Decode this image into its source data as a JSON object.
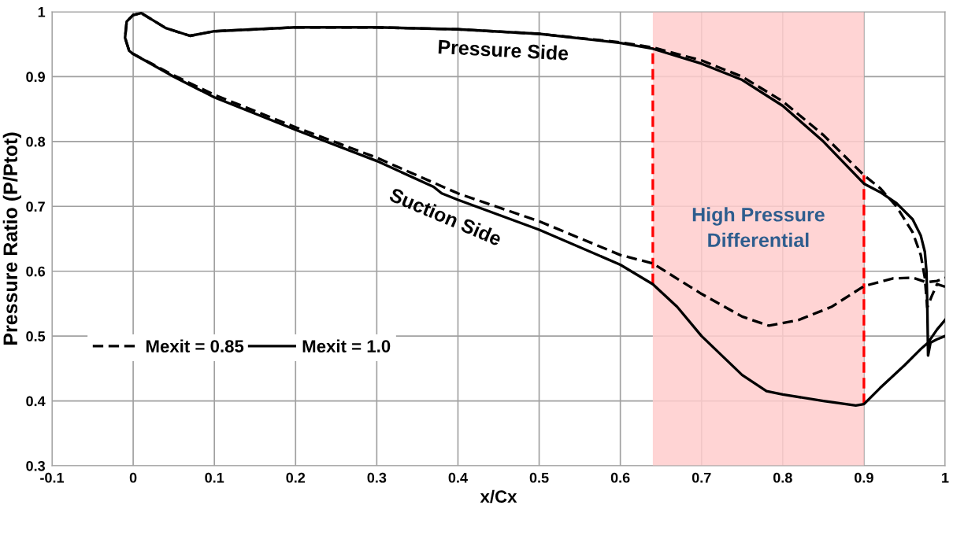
{
  "chart_data": {
    "type": "line",
    "xlabel": "x/Cx",
    "ylabel": "Pressure Ratio (P/Ptot)",
    "xlim": [
      -0.1,
      1
    ],
    "xticks": [
      -0.1,
      0,
      0.1,
      0.2,
      0.3,
      0.4,
      0.5,
      0.6,
      0.7,
      0.8,
      0.9,
      1
    ],
    "ylim": [
      0.3,
      1
    ],
    "yticks": [
      0.3,
      0.4,
      0.5,
      0.6,
      0.7,
      0.8,
      0.9,
      1
    ],
    "grid": true,
    "legend": "left",
    "series": [
      {
        "name": "Mexit = 0.85",
        "color": "#000000",
        "line_style": "dashed",
        "x": [
          1.0,
          0.99,
          0.983,
          0.978,
          0.975,
          0.97,
          0.96,
          0.94,
          0.92,
          0.9,
          0.85,
          0.8,
          0.75,
          0.7,
          0.64,
          0.6,
          0.5,
          0.4,
          0.3,
          0.2,
          0.1,
          0.07,
          0.04,
          0.01,
          0.0,
          -0.008,
          -0.01,
          -0.005,
          0.0,
          0.05,
          0.1,
          0.2,
          0.3,
          0.4,
          0.5,
          0.6,
          0.64,
          0.7,
          0.75,
          0.783,
          0.82,
          0.86,
          0.9,
          0.936,
          0.96,
          0.977,
          0.99,
          1.0
        ],
        "values": [
          0.576,
          0.58,
          0.56,
          0.544,
          0.59,
          0.625,
          0.66,
          0.7,
          0.728,
          0.748,
          0.81,
          0.862,
          0.9,
          0.925,
          0.945,
          0.953,
          0.966,
          0.973,
          0.976,
          0.976,
          0.97,
          0.963,
          0.975,
          0.998,
          0.995,
          0.985,
          0.96,
          0.94,
          0.935,
          0.902,
          0.872,
          0.822,
          0.775,
          0.72,
          0.677,
          0.625,
          0.612,
          0.565,
          0.53,
          0.516,
          0.525,
          0.545,
          0.577,
          0.589,
          0.59,
          0.583,
          0.585,
          0.59
        ]
      },
      {
        "name": "Mexit = 1.0",
        "color": "#000000",
        "line_style": "solid",
        "x": [
          1.0,
          0.99,
          0.982,
          0.979,
          0.978,
          0.977,
          0.975,
          0.97,
          0.96,
          0.94,
          0.92,
          0.9,
          0.85,
          0.8,
          0.75,
          0.7,
          0.64,
          0.6,
          0.5,
          0.4,
          0.3,
          0.2,
          0.1,
          0.07,
          0.04,
          0.01,
          0.0,
          -0.008,
          -0.01,
          -0.005,
          0.0,
          0.05,
          0.1,
          0.2,
          0.3,
          0.37,
          0.38,
          0.4,
          0.5,
          0.6,
          0.64,
          0.67,
          0.7,
          0.75,
          0.78,
          0.8,
          0.85,
          0.89,
          0.9,
          0.92,
          0.95,
          0.97,
          0.979,
          0.99,
          1.0
        ],
        "values": [
          0.5,
          0.495,
          0.49,
          0.47,
          0.55,
          0.6,
          0.63,
          0.655,
          0.68,
          0.705,
          0.722,
          0.735,
          0.8,
          0.855,
          0.895,
          0.92,
          0.943,
          0.952,
          0.966,
          0.973,
          0.976,
          0.976,
          0.97,
          0.963,
          0.975,
          0.998,
          0.995,
          0.985,
          0.96,
          0.94,
          0.935,
          0.9,
          0.868,
          0.818,
          0.77,
          0.73,
          0.72,
          0.71,
          0.664,
          0.61,
          0.58,
          0.545,
          0.5,
          0.44,
          0.415,
          0.41,
          0.4,
          0.393,
          0.395,
          0.42,
          0.455,
          0.48,
          0.49,
          0.51,
          0.525
        ]
      }
    ],
    "bands": [
      {
        "axis": "x",
        "from": 0.64,
        "to": 0.9,
        "label": "High Pressure\nDifferential",
        "color": "#ffcccc"
      }
    ],
    "ref_lines": [
      {
        "axis": "x",
        "value": 0.64,
        "color": "#ff0000",
        "line_style": "dashed"
      },
      {
        "axis": "x",
        "value": 0.9,
        "color": "#ff0000",
        "line_style": "dashed"
      }
    ],
    "annotations": [
      "Pressure Side",
      "Suction Side"
    ]
  }
}
